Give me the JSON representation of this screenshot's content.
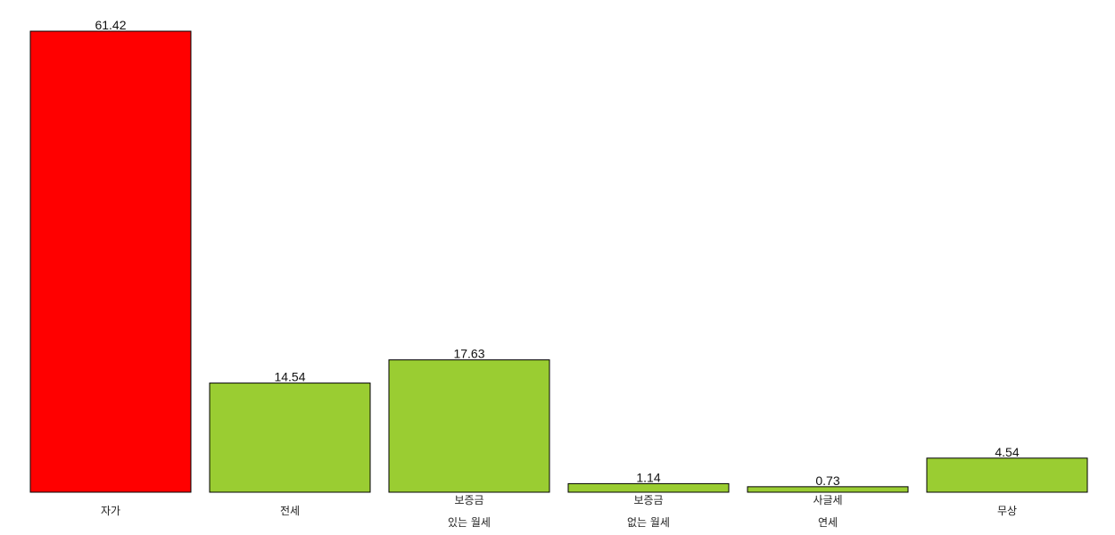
{
  "chart_data": {
    "type": "bar",
    "categories": [
      [
        "자가"
      ],
      [
        "전세"
      ],
      [
        "보증금",
        "있는 월세"
      ],
      [
        "보증금",
        "없는 월세"
      ],
      [
        "사글세",
        "연세"
      ],
      [
        "무상"
      ]
    ],
    "values": [
      61.42,
      14.54,
      17.63,
      1.14,
      0.73,
      4.54
    ],
    "value_labels": [
      "61.42",
      "14.54",
      "17.63",
      "1.14",
      "0.73",
      "4.54"
    ],
    "colors": [
      "#ff0000",
      "#9acd32",
      "#9acd32",
      "#9acd32",
      "#9acd32",
      "#9acd32"
    ],
    "highlight_color": "#ff0000",
    "base_color": "#9acd32",
    "ylim": [
      0,
      61.42
    ],
    "grid": false,
    "axes_visible": false,
    "legend": "none"
  }
}
